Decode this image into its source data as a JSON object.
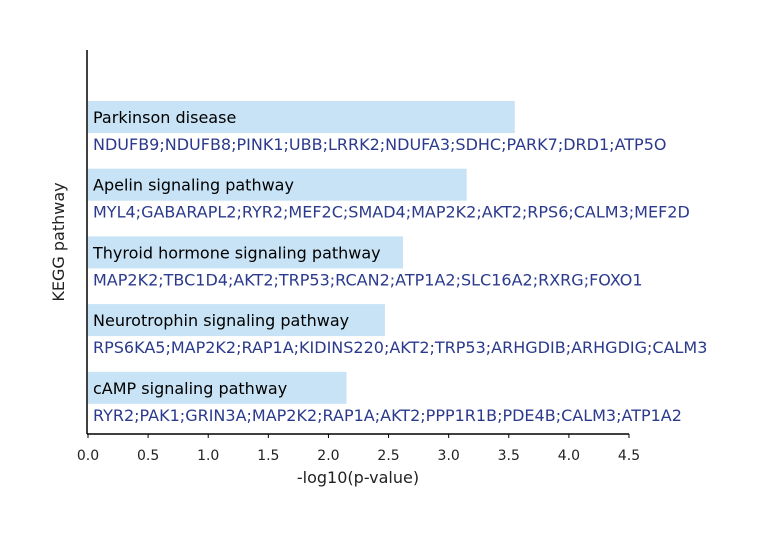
{
  "chart_data": {
    "type": "bar",
    "orientation": "horizontal",
    "xlabel": "-log10(p-value)",
    "ylabel": "KEGG pathway",
    "xlim": [
      0,
      4.5
    ],
    "xticks": [
      "0.0",
      "0.5",
      "1.0",
      "1.5",
      "2.0",
      "2.5",
      "3.0",
      "3.5",
      "4.0",
      "4.5"
    ],
    "grid": false,
    "categories": [
      "Parkinson disease",
      "Apelin signaling pathway",
      "Thyroid hormone signaling pathway",
      "Neurotrophin signaling pathway",
      "cAMP signaling pathway"
    ],
    "values": [
      3.55,
      3.15,
      2.62,
      2.47,
      2.15
    ],
    "genes": [
      "NDUFB9;NDUFB8;PINK1;UBB;LRRK2;NDUFA3;SDHC;PARK7;DRD1;ATP5O",
      "MYL4;GABARAPL2;RYR2;MEF2C;SMAD4;MAP2K2;AKT2;RPS6;CALM3;MEF2D",
      "MAP2K2;TBC1D4;AKT2;TRP53;RCAN2;ATP1A2;SLC16A2;RXRG;FOXO1",
      "RPS6KA5;MAP2K2;RAP1A;KIDINS220;AKT2;TRP53;ARHGDIB;ARHGDIG;CALM3",
      "RYR2;PAK1;GRIN3A;MAP2K2;RAP1A;AKT2;PPP1R1B;PDE4B;CALM3;ATP1A2"
    ],
    "colors": {
      "bar": "#c8e3f5",
      "pathway_label": "#000000",
      "gene_label": "#2b3a8c",
      "axis": "#000000",
      "tick_label": "#222222"
    }
  }
}
